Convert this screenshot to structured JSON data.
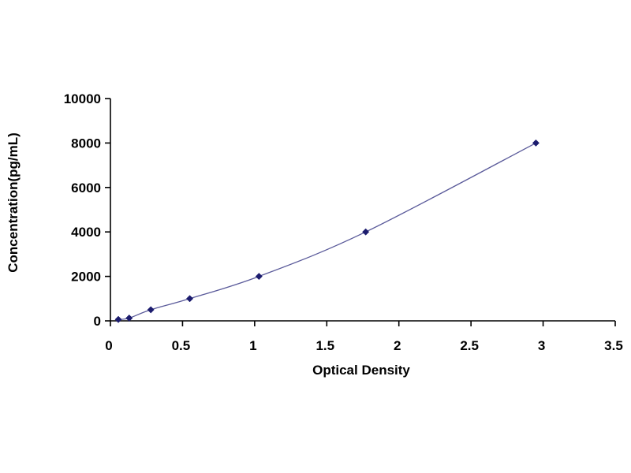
{
  "chart_data": {
    "type": "scatter",
    "title": "",
    "xlabel": "Optical Density",
    "ylabel": "Concentration(pg/mL)",
    "xlim": [
      0,
      3.5
    ],
    "ylim": [
      0,
      10000
    ],
    "x_ticks": [
      "0",
      "0.5",
      "1",
      "1.5",
      "2",
      "2.5",
      "3",
      "3.5"
    ],
    "y_ticks": [
      "0",
      "2000",
      "4000",
      "6000",
      "8000",
      "10000"
    ],
    "x_tick_values": [
      0,
      0.5,
      1,
      1.5,
      2,
      2.5,
      3,
      3.5
    ],
    "y_tick_values": [
      0,
      2000,
      4000,
      6000,
      8000,
      10000
    ],
    "grid": false,
    "legend": "none",
    "series": [
      {
        "points": [
          {
            "x": 0.055,
            "y": 62.5
          },
          {
            "x": 0.13,
            "y": 125
          },
          {
            "x": 0.28,
            "y": 500
          },
          {
            "x": 0.55,
            "y": 1000
          },
          {
            "x": 1.03,
            "y": 2000
          },
          {
            "x": 1.77,
            "y": 4000
          },
          {
            "x": 2.95,
            "y": 8000
          }
        ],
        "marker": "diamond",
        "marker_color": "#1c1c6e",
        "line_color": "#5a5a9a",
        "fit": "smooth-curve"
      }
    ]
  }
}
